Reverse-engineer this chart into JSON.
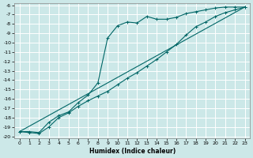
{
  "xlabel": "Humidex (Indice chaleur)",
  "bg_color": "#cce8e8",
  "grid_color": "#ffffff",
  "line_color": "#006666",
  "xlim": [
    -0.5,
    23.5
  ],
  "ylim": [
    -20.2,
    -5.8
  ],
  "xticks": [
    0,
    1,
    2,
    3,
    4,
    5,
    6,
    7,
    8,
    9,
    10,
    11,
    12,
    13,
    14,
    15,
    16,
    17,
    18,
    19,
    20,
    21,
    22,
    23
  ],
  "yticks": [
    -6,
    -7,
    -8,
    -9,
    -10,
    -11,
    -12,
    -13,
    -14,
    -15,
    -16,
    -17,
    -18,
    -19,
    -20
  ],
  "line1_x": [
    0,
    1,
    2,
    3,
    4,
    5,
    6,
    7,
    8,
    9,
    10,
    11,
    12,
    13,
    14,
    15,
    16,
    17,
    18,
    19,
    20,
    21,
    22,
    23
  ],
  "line1_y": [
    -19.5,
    -19.5,
    -19.6,
    -18.5,
    -17.8,
    -17.4,
    -16.4,
    -15.6,
    -14.3,
    -9.5,
    -8.2,
    -7.8,
    -7.9,
    -7.2,
    -7.5,
    -7.5,
    -7.3,
    -6.9,
    -6.7,
    -6.5,
    -6.3,
    -6.2,
    -6.2,
    -6.2
  ],
  "line2_x": [
    0,
    1,
    2,
    3,
    4,
    5,
    6,
    7,
    8,
    9,
    10,
    11,
    12,
    13,
    14,
    15,
    16,
    17,
    18,
    19,
    20,
    21,
    22,
    23
  ],
  "line2_y": [
    -19.5,
    -19.6,
    -19.7,
    -19.0,
    -18.0,
    -17.5,
    -16.8,
    -16.2,
    -15.7,
    -15.2,
    -14.5,
    -13.8,
    -13.2,
    -12.5,
    -11.8,
    -11.0,
    -10.2,
    -9.2,
    -8.3,
    -7.8,
    -7.2,
    -6.8,
    -6.5,
    -6.2
  ],
  "line3_x": [
    0,
    23
  ],
  "line3_y": [
    -19.5,
    -6.2
  ]
}
